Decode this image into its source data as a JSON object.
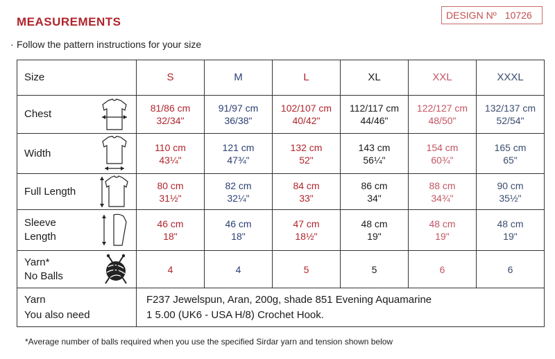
{
  "title": "MEASUREMENTS",
  "design_label": "DESIGN Nº",
  "design_number": "10726",
  "intro": "Follow the pattern instructions for your size",
  "table": {
    "size_label": "Size",
    "sizes": [
      "S",
      "M",
      "L",
      "XL",
      "XXL",
      "XXXL"
    ],
    "rows": [
      {
        "label": "Chest",
        "line1": [
          "81/86 cm",
          "91/97 cm",
          "102/107 cm",
          "112/117 cm",
          "122/127 cm",
          "132/137 cm"
        ],
        "line2": [
          "32/34\"",
          "36/38\"",
          "40/42\"",
          "44/46\"",
          "48/50\"",
          "52/54\""
        ]
      },
      {
        "label": "Width",
        "line1": [
          "110 cm",
          "121 cm",
          "132 cm",
          "143 cm",
          "154 cm",
          "165 cm"
        ],
        "line2": [
          "43¼\"",
          "47¾\"",
          "52\"",
          "56¼\"",
          "60¾\"",
          "65\""
        ]
      },
      {
        "label": "Full Length",
        "line1": [
          "80 cm",
          "82 cm",
          "84 cm",
          "86 cm",
          "88 cm",
          "90 cm"
        ],
        "line2": [
          "31½\"",
          "32¼\"",
          "33\"",
          "34\"",
          "34¾\"",
          "35½\""
        ]
      },
      {
        "label": "Sleeve Length",
        "label_a": "Sleeve",
        "label_b": "Length",
        "line1": [
          "46 cm",
          "46 cm",
          "47 cm",
          "48 cm",
          "48 cm",
          "48 cm"
        ],
        "line2": [
          "18\"",
          "18\"",
          "18½\"",
          "19\"",
          "19\"",
          "19\""
        ]
      },
      {
        "label_a": "Yarn*",
        "label_b": "No Balls",
        "values": [
          "4",
          "4",
          "5",
          "5",
          "6",
          "6"
        ]
      }
    ],
    "yarn_label": "Yarn",
    "yarn_value": "F237 Jewelspun, Aran, 200g, shade 851 Evening Aquamarine",
    "need_label": "You also need",
    "need_value": "1 5.00 (UK6 - USA H/8) Crochet Hook."
  },
  "footnote": "*Average number of balls required when you use the specified Sirdar yarn and tension shown below",
  "colors": {
    "title": "#b0242c",
    "s": "#b0242c",
    "m": "#2b3f73",
    "l": "#b0242c",
    "xl": "#1a1a1a",
    "xxl": "#c25563",
    "xxxl": "#3a4c6e"
  },
  "icons": [
    "chest-measure-icon",
    "width-measure-icon",
    "full-length-measure-icon",
    "sleeve-length-measure-icon",
    "yarn-ball-icon"
  ]
}
